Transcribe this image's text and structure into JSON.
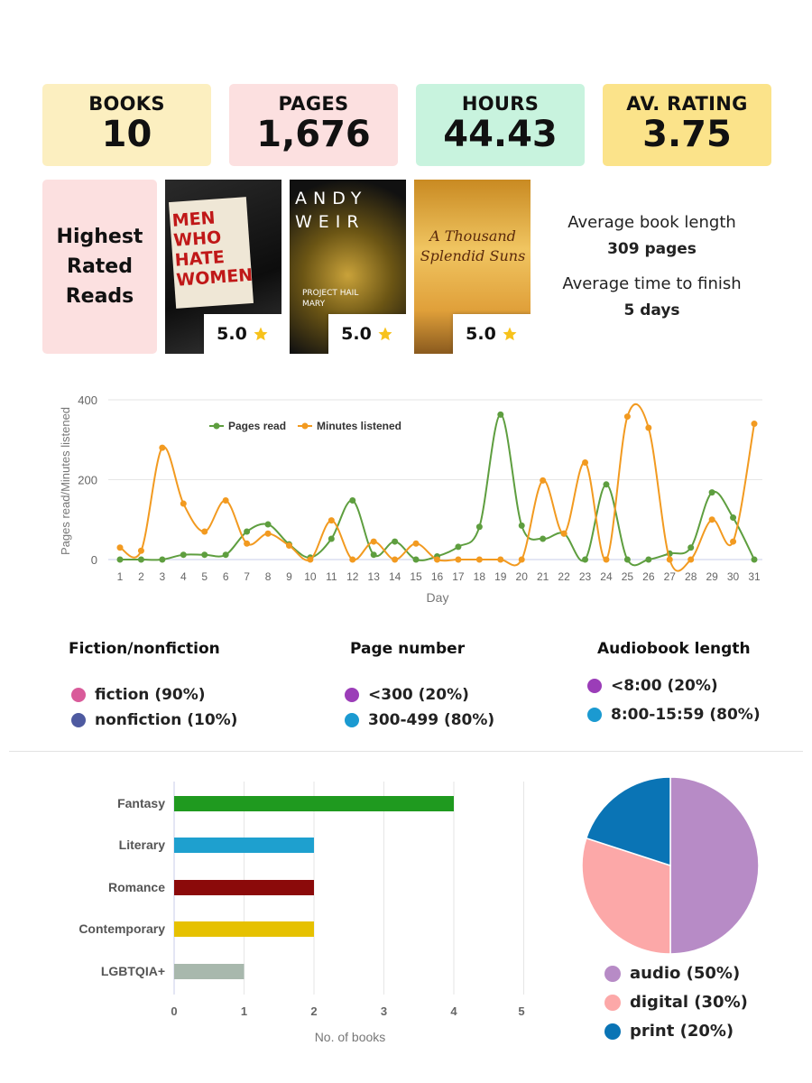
{
  "stats": [
    {
      "label": "BOOKS",
      "value": "10",
      "color": "#fcefc0"
    },
    {
      "label": "PAGES",
      "value": "1,676",
      "color": "#fce0e0"
    },
    {
      "label": "HOURS",
      "value": "44.43",
      "color": "#c8f3de"
    },
    {
      "label": "AV. RATING",
      "value": "3.75",
      "color": "#fbe38a"
    }
  ],
  "highest_rated": {
    "title": "Highest Rated Reads",
    "books": [
      {
        "cover_text": "MEN WHO HATE WOMEN",
        "rating": "5.0"
      },
      {
        "cover_text": "ANDY WEIR",
        "cover_sub": "PROJECT HAIL MARY",
        "rating": "5.0"
      },
      {
        "cover_text": "A Thousand Splendid Suns",
        "rating": "5.0"
      }
    ]
  },
  "averages": {
    "length_label": "Average book length",
    "length_value": "309 pages",
    "finish_label": "Average time to finish",
    "finish_value": "5 days"
  },
  "chart_data": [
    {
      "type": "line",
      "title": "",
      "xlabel": "Day",
      "ylabel": "Pages read/Minutes listened",
      "ylim": [
        0,
        400
      ],
      "yticks": [
        0,
        200,
        400
      ],
      "x": [
        1,
        2,
        3,
        4,
        5,
        6,
        7,
        8,
        9,
        10,
        11,
        12,
        13,
        14,
        15,
        16,
        17,
        18,
        19,
        20,
        21,
        22,
        23,
        24,
        25,
        26,
        27,
        28,
        29,
        30,
        31
      ],
      "series": [
        {
          "name": "Pages read",
          "color": "#5e9e3f",
          "values": [
            0,
            0,
            0,
            12,
            12,
            12,
            70,
            88,
            38,
            5,
            52,
            148,
            12,
            45,
            0,
            8,
            32,
            82,
            363,
            85,
            52,
            65,
            0,
            188,
            0,
            0,
            15,
            30,
            168,
            105,
            0
          ]
        },
        {
          "name": "Minutes listened",
          "color": "#f29a20",
          "values": [
            30,
            22,
            280,
            140,
            70,
            148,
            40,
            65,
            35,
            0,
            98,
            0,
            45,
            0,
            40,
            0,
            0,
            0,
            0,
            0,
            198,
            65,
            243,
            0,
            358,
            330,
            0,
            0,
            100,
            45,
            340
          ]
        }
      ],
      "legend": "top-left"
    },
    {
      "type": "bar",
      "orientation": "horizontal",
      "categories": [
        "Fantasy",
        "Literary",
        "Romance",
        "Contemporary",
        "LGBTQIA+"
      ],
      "values": [
        4,
        2,
        2,
        2,
        1
      ],
      "colors": [
        "#1f9a1f",
        "#1ea0cf",
        "#8b0a0a",
        "#e6c100",
        "#a8b8ad"
      ],
      "xlabel": "No. of books",
      "xlim": [
        0,
        5
      ],
      "xticks": [
        0,
        1,
        2,
        3,
        4,
        5
      ]
    },
    {
      "type": "pie",
      "slices": [
        {
          "label": "audio (50%)",
          "value": 50,
          "color": "#b78bc6"
        },
        {
          "label": "digital (30%)",
          "value": 30,
          "color": "#fca8a8"
        },
        {
          "label": "print (20%)",
          "value": 20,
          "color": "#0a74b5"
        }
      ]
    }
  ],
  "legends": [
    {
      "title": "Fiction/nonfiction",
      "items": [
        {
          "label": "fiction (90%)",
          "color": "#d95b9a"
        },
        {
          "label": "nonfiction (10%)",
          "color": "#4e5aa0"
        }
      ]
    },
    {
      "title": "Page number",
      "items": [
        {
          "label": "<300 (20%)",
          "color": "#9b3db8"
        },
        {
          "label": "300-499 (80%)",
          "color": "#1b9ad1"
        }
      ]
    },
    {
      "title": "Audiobook length",
      "items": [
        {
          "label": "<8:00 (20%)",
          "color": "#9b3db8"
        },
        {
          "label": "8:00-15:59 (80%)",
          "color": "#1b9ad1"
        }
      ]
    }
  ]
}
